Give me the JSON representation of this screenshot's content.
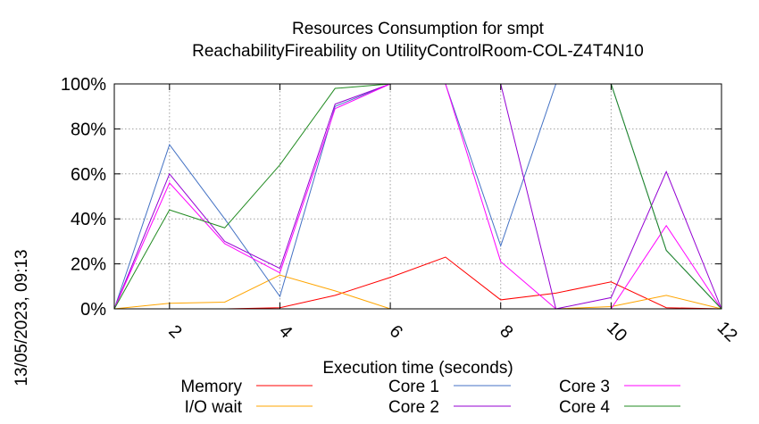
{
  "chart_data": {
    "type": "line",
    "title_line1": "Resources Consumption for smpt",
    "title_line2": "ReachabilityFireability on UtilityControlRoom-COL-Z4T4N10",
    "xlabel": "Execution time (seconds)",
    "ylabel": "",
    "timestamp": "13/05/2023, 09:13",
    "xlim": [
      1,
      12
    ],
    "ylim": [
      0,
      100
    ],
    "x_ticks": [
      2,
      4,
      6,
      8,
      10,
      12
    ],
    "y_ticks": [
      0,
      20,
      40,
      60,
      80,
      100
    ],
    "y_tick_labels": [
      "0%",
      "20%",
      "40%",
      "60%",
      "80%",
      "100%"
    ],
    "grid": true,
    "legend_placement": "bottom",
    "series": [
      {
        "name": "Memory",
        "color": "#ff0000",
        "points": [
          [
            1,
            0
          ],
          [
            2,
            0
          ],
          [
            3,
            0
          ],
          [
            4,
            0.5
          ],
          [
            5,
            6
          ],
          [
            6,
            14
          ],
          [
            7,
            23
          ],
          [
            8,
            4
          ],
          [
            9,
            7
          ],
          [
            10,
            12
          ],
          [
            11,
            0.5
          ],
          [
            12,
            0
          ]
        ]
      },
      {
        "name": "I/O wait",
        "color": "#ffa500",
        "points": [
          [
            1,
            0
          ],
          [
            2,
            2.5
          ],
          [
            3,
            3
          ],
          [
            4,
            15
          ],
          [
            5,
            8
          ],
          [
            6,
            0
          ],
          [
            7,
            0
          ],
          [
            8,
            0
          ],
          [
            9,
            0
          ],
          [
            10,
            1
          ],
          [
            11,
            6
          ],
          [
            12,
            0
          ]
        ]
      },
      {
        "name": "Core 1",
        "color": "#4472c4",
        "points": [
          [
            1,
            0
          ],
          [
            2,
            73
          ],
          [
            3,
            40
          ],
          [
            4,
            5.5
          ],
          [
            5,
            90
          ],
          [
            6,
            100
          ],
          [
            7,
            100
          ],
          [
            8,
            28
          ],
          [
            9,
            100
          ],
          [
            10,
            100
          ],
          [
            11,
            26
          ],
          [
            12,
            0
          ]
        ]
      },
      {
        "name": "Core 2",
        "color": "#9400d3",
        "points": [
          [
            1,
            0
          ],
          [
            2,
            60
          ],
          [
            3,
            30
          ],
          [
            4,
            18
          ],
          [
            5,
            91
          ],
          [
            6,
            100
          ],
          [
            7,
            100
          ],
          [
            8,
            100
          ],
          [
            9,
            0
          ],
          [
            10,
            5
          ],
          [
            11,
            61
          ],
          [
            12,
            0
          ]
        ]
      },
      {
        "name": "Core 3",
        "color": "#ff00ff",
        "points": [
          [
            1,
            0
          ],
          [
            2,
            56
          ],
          [
            3,
            29
          ],
          [
            4,
            16
          ],
          [
            5,
            89
          ],
          [
            6,
            100
          ],
          [
            7,
            100
          ],
          [
            8,
            21
          ],
          [
            9,
            0
          ],
          [
            10,
            0
          ],
          [
            11,
            37
          ],
          [
            12,
            0
          ]
        ]
      },
      {
        "name": "Core 4",
        "color": "#228b22",
        "points": [
          [
            1,
            0
          ],
          [
            2,
            44
          ],
          [
            3,
            36
          ],
          [
            4,
            64
          ],
          [
            5,
            98
          ],
          [
            6,
            100
          ],
          [
            7,
            100
          ],
          [
            8,
            100
          ],
          [
            9,
            100
          ],
          [
            10,
            100
          ],
          [
            11,
            26
          ],
          [
            12,
            0
          ]
        ]
      }
    ]
  }
}
